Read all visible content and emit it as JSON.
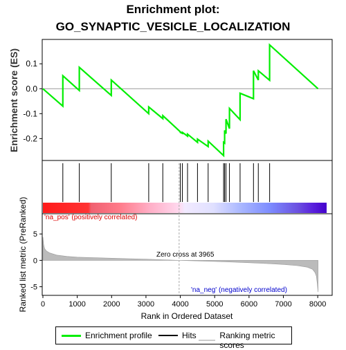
{
  "chart_data": {
    "type": "line",
    "title_line1": "Enrichment plot:",
    "title_line2": "GO_SYNAPTIC_VESICLE_LOCALIZATION",
    "xlabel": "Rank in Ordered Dataset",
    "ylabel_top": "Enrichment score (ES)",
    "ylabel_bottom": "Ranked list metric (PreRanked)",
    "xlim": [
      0,
      8400
    ],
    "x_ticks": [
      0,
      1000,
      2000,
      3000,
      4000,
      5000,
      6000,
      7000,
      8000
    ],
    "es_ylim": [
      -0.285,
      0.195
    ],
    "es_ticks": [
      -0.2,
      -0.1,
      0.0,
      0.1
    ],
    "metric_ylim": [
      -6.5,
      8.7
    ],
    "metric_ticks": [
      -5,
      0,
      5
    ],
    "hits": [
      580,
      1060,
      1990,
      3080,
      3490,
      4000,
      4060,
      4210,
      4500,
      4810,
      5260,
      5290,
      5330,
      5430,
      5740,
      6130,
      6270,
      6600
    ],
    "es_profile": {
      "x": [
        0,
        580,
        580,
        1060,
        1060,
        1990,
        1990,
        3080,
        3080,
        3490,
        3490,
        4000,
        4000,
        4060,
        4060,
        4210,
        4210,
        4500,
        4500,
        4810,
        4810,
        5260,
        5260,
        5290,
        5290,
        5330,
        5330,
        5430,
        5430,
        5740,
        5740,
        6130,
        6130,
        6270,
        6270,
        6600,
        6600,
        8010
      ],
      "y": [
        0.0,
        -0.07,
        0.052,
        -0.007,
        0.086,
        -0.027,
        0.035,
        -0.1,
        -0.073,
        -0.12,
        -0.108,
        -0.173,
        -0.175,
        -0.179,
        -0.175,
        -0.19,
        -0.182,
        -0.215,
        -0.202,
        -0.232,
        -0.21,
        -0.268,
        -0.215,
        -0.218,
        -0.167,
        -0.18,
        -0.122,
        -0.16,
        -0.079,
        -0.124,
        -0.018,
        -0.04,
        0.072,
        0.035,
        0.072,
        0.034,
        0.176,
        0.0
      ]
    },
    "metric_curve": {
      "x": [
        0,
        20,
        50,
        100,
        200,
        400,
        700,
        1000,
        1500,
        2000,
        2500,
        3000,
        3500,
        3965,
        4500,
        5000,
        5500,
        6000,
        6500,
        7000,
        7400,
        7700,
        7850,
        7920,
        7960,
        7990,
        8010
      ],
      "y": [
        4.4,
        3.0,
        2.2,
        1.8,
        1.4,
        1.0,
        0.75,
        0.6,
        0.5,
        0.4,
        0.3,
        0.22,
        0.12,
        0.0,
        -0.1,
        -0.2,
        -0.32,
        -0.45,
        -0.6,
        -0.78,
        -1.0,
        -1.3,
        -1.7,
        -2.3,
        -3.0,
        -4.5,
        -6.0
      ]
    },
    "zero_cross_label": "Zero cross at 3965",
    "zero_cross": 3965,
    "pos_label": "'na_pos' (positively correlated)",
    "neg_label": "'na_neg' (negatively correlated)",
    "series": [
      {
        "name": "Enrichment profile",
        "color": "#00ee00"
      },
      {
        "name": "Hits",
        "color": "#000000"
      },
      {
        "name": "Ranking metric scores",
        "color": "#cccccc"
      }
    ],
    "colors": {
      "profile": "#00ee00",
      "hits": "#000000",
      "metric": "#bbbbbb",
      "pos_label": "#dd0000",
      "neg_label": "#0000cc",
      "gradient_pos": "#ff0000",
      "gradient_neg": "#0000ff"
    }
  }
}
